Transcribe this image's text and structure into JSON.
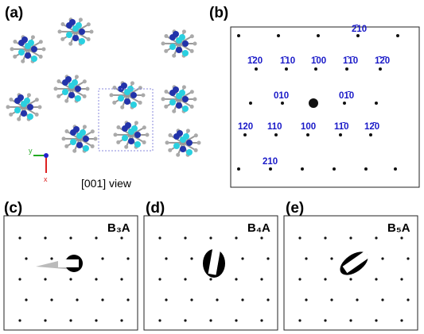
{
  "panels": [
    {
      "label": "(a)",
      "caption": "[001] view",
      "axes": [
        "y",
        "x"
      ]
    },
    {
      "label": "(b)",
      "indices": [
        "2̄10",
        "1̄20",
        "1̄10",
        "1̄00",
        "1̄1̄0",
        "1̄2̄0",
        "010",
        "01̄0",
        "120",
        "110",
        "100",
        "11̄0",
        "12̄0",
        "210"
      ]
    },
    {
      "label": "(c)",
      "sample": "B₃A"
    },
    {
      "label": "(d)",
      "sample": "B₄A"
    },
    {
      "label": "(e)",
      "sample": "B₅A"
    }
  ]
}
